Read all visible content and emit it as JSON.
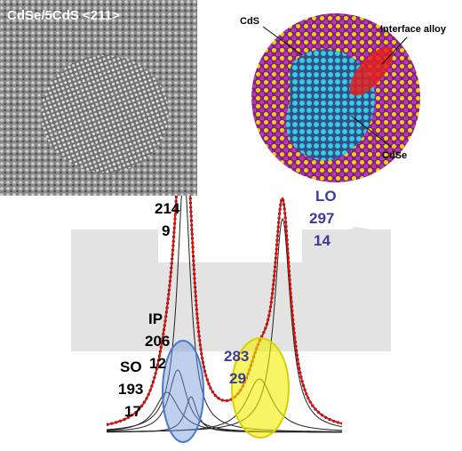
{
  "tem_image": {
    "label": "CdSe/5CdS <211>"
  },
  "nanocrystal_model": {
    "shell_label": "CdS",
    "interface_label": "Interface alloy",
    "core_label": "CdSe"
  },
  "raman_peaks": [
    {
      "mode": "LO",
      "position": 297,
      "width": 14
    },
    {
      "position": 214,
      "width": 9
    },
    {
      "mode": "IP",
      "position": 206,
      "width": 12
    },
    {
      "mode": "SO",
      "position": 193,
      "width": 17
    },
    {
      "position": 283,
      "width": 29
    }
  ]
}
